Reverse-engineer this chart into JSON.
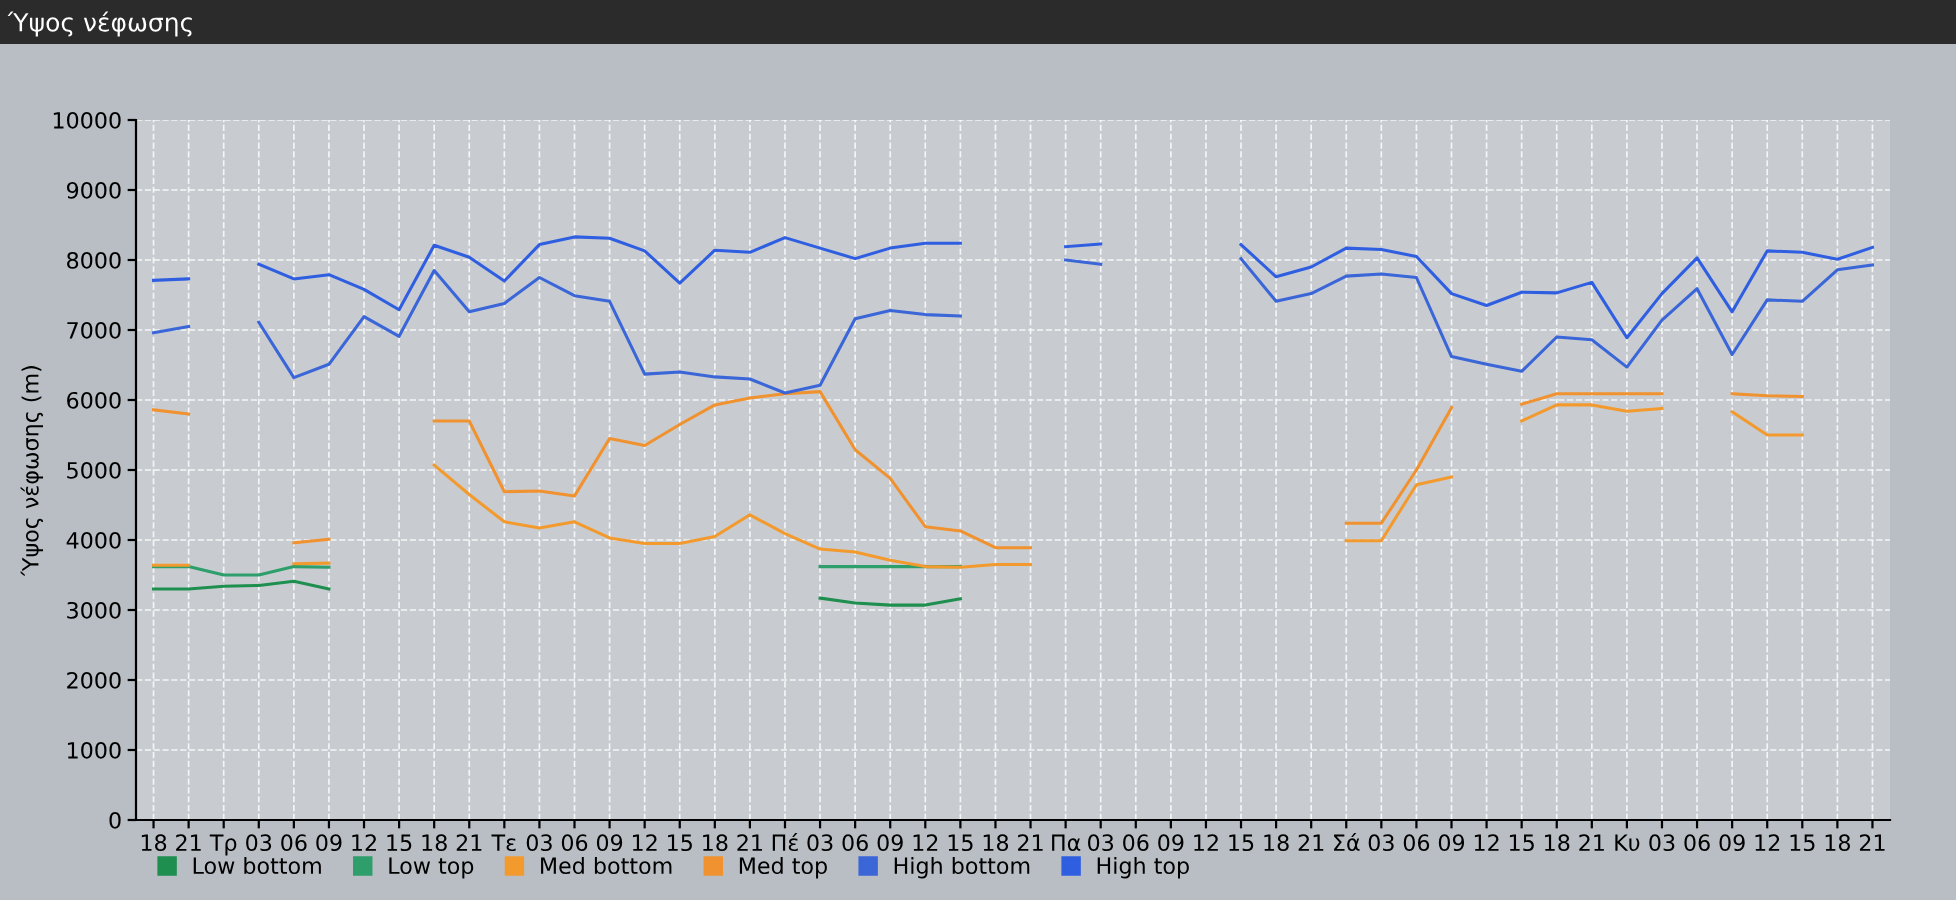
{
  "chart_data": {
    "type": "line",
    "title": "Ύψος νέφωσης",
    "ylabel": "Ύψος νέφωσης (m)",
    "categories": [
      "18",
      "21",
      "Τρ",
      "03",
      "06",
      "09",
      "12",
      "15",
      "18",
      "21",
      "Τε",
      "03",
      "06",
      "09",
      "12",
      "15",
      "18",
      "21",
      "Πέ",
      "03",
      "06",
      "09",
      "12",
      "15",
      "18",
      "21",
      "Πα",
      "03",
      "06",
      "09",
      "12",
      "15",
      "18",
      "21",
      "Σά",
      "03",
      "06",
      "09",
      "12",
      "15",
      "18",
      "21",
      "Κυ",
      "03",
      "06",
      "09",
      "12",
      "15",
      "18",
      "21"
    ],
    "ylim": [
      0,
      10000
    ],
    "yticks": [
      0,
      1000,
      2000,
      3000,
      4000,
      5000,
      6000,
      7000,
      8000,
      9000,
      10000
    ],
    "grid": true,
    "legend": "bottom",
    "marker": "none",
    "line_style": "solid",
    "series": [
      {
        "name": "Low bottom",
        "color": "#1f8f4f",
        "values": [
          3300,
          3300,
          3340,
          3350,
          3410,
          3300,
          null,
          null,
          null,
          null,
          null,
          null,
          null,
          null,
          null,
          null,
          null,
          null,
          null,
          3170,
          3100,
          3070,
          3070,
          3160,
          null,
          null,
          null,
          null,
          null,
          null,
          null,
          null,
          null,
          null,
          null,
          null,
          null,
          null,
          null,
          null,
          null,
          null,
          null,
          null,
          null,
          null,
          null,
          null,
          null,
          null
        ]
      },
      {
        "name": "Low top",
        "color": "#2e9e6a",
        "values": [
          3620,
          3620,
          3500,
          3500,
          3620,
          3610,
          null,
          null,
          null,
          null,
          null,
          null,
          null,
          null,
          null,
          null,
          null,
          null,
          null,
          3620,
          3620,
          3620,
          3620,
          3620,
          null,
          null,
          null,
          null,
          null,
          null,
          null,
          null,
          null,
          null,
          null,
          null,
          null,
          null,
          null,
          null,
          null,
          null,
          null,
          null,
          null,
          null,
          null,
          null,
          null,
          null
        ]
      },
      {
        "name": "Med bottom",
        "color": "#f39a2e",
        "values": [
          3640,
          3640,
          null,
          null,
          3660,
          3670,
          null,
          null,
          5070,
          4650,
          4260,
          4170,
          4260,
          4030,
          3950,
          3950,
          4050,
          4360,
          4090,
          3870,
          3830,
          3710,
          3620,
          3610,
          3650,
          3650,
          null,
          null,
          null,
          null,
          null,
          null,
          null,
          null,
          3990,
          3990,
          4790,
          4900,
          null,
          5700,
          5930,
          5930,
          5840,
          5880,
          null,
          5830,
          5500,
          5500,
          null,
          null
        ]
      },
      {
        "name": "Med top",
        "color": "#f0922f",
        "values": [
          5860,
          5800,
          null,
          null,
          3960,
          4010,
          null,
          null,
          5700,
          5700,
          4690,
          4700,
          4630,
          5450,
          5350,
          5650,
          5930,
          6030,
          6090,
          6120,
          5290,
          4880,
          4190,
          4130,
          3890,
          3890,
          null,
          null,
          null,
          null,
          null,
          null,
          null,
          null,
          4240,
          4240,
          5000,
          5890,
          null,
          5940,
          6090,
          6090,
          6090,
          6090,
          null,
          6090,
          6060,
          6050,
          null,
          null
        ]
      },
      {
        "name": "High bottom",
        "color": "#3a66d8",
        "values": [
          6960,
          7050,
          null,
          7110,
          6320,
          6510,
          7190,
          6910,
          7850,
          7260,
          7380,
          7750,
          7490,
          7410,
          6370,
          6400,
          6330,
          6300,
          6100,
          6210,
          7160,
          7280,
          7220,
          7200,
          null,
          null,
          8000,
          7940,
          null,
          null,
          null,
          8020,
          7410,
          7520,
          7770,
          7800,
          7750,
          6620,
          6510,
          6410,
          6900,
          6860,
          6470,
          7140,
          7590,
          6650,
          7430,
          7410,
          7860,
          7930
        ]
      },
      {
        "name": "High top",
        "color": "#2f5fe0",
        "values": [
          7710,
          7730,
          null,
          7940,
          7730,
          7790,
          7580,
          7290,
          8210,
          8040,
          7700,
          8220,
          8330,
          8310,
          8130,
          7670,
          8140,
          8110,
          8320,
          8170,
          8020,
          8170,
          8240,
          8240,
          null,
          null,
          8190,
          8230,
          null,
          null,
          null,
          8220,
          7760,
          7900,
          8170,
          8150,
          8050,
          7520,
          7350,
          7540,
          7530,
          7680,
          6890,
          7520,
          8030,
          7260,
          8130,
          8110,
          8010,
          8180
        ]
      }
    ]
  }
}
